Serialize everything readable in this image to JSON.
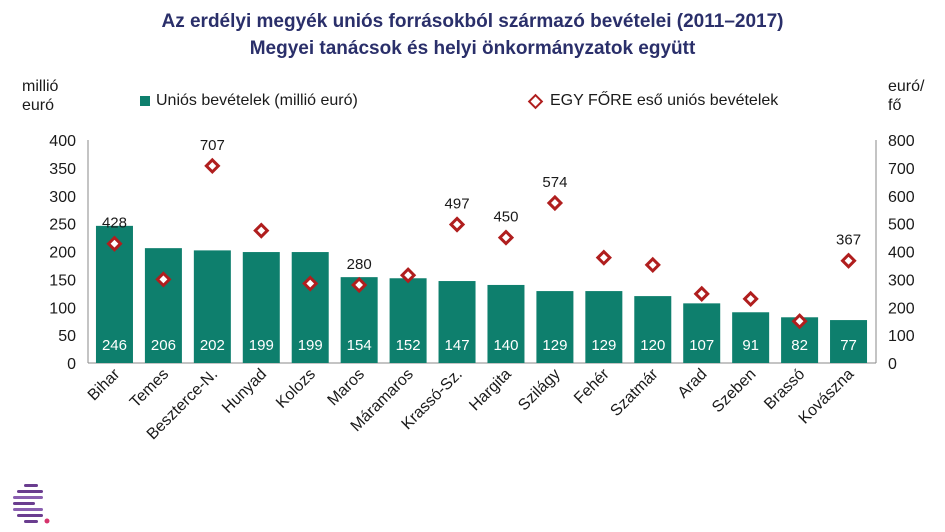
{
  "title": {
    "line1": "Az erdélyi megyék uniós forrásokból származó bevételei (2011–2017)",
    "line2": "Megyei tanácsok és helyi önkormányzatok együtt"
  },
  "axis_units": {
    "left_line1": "millió",
    "left_line2": "euró",
    "right_line1": "euró/",
    "right_line2": "fő"
  },
  "legend": {
    "bar_label": "Uniós bevételek (millió euró)",
    "marker_label": "EGY FŐRE eső uniós bevételek"
  },
  "colors": {
    "bar": "#0e7f6d",
    "marker": "#b01e1e",
    "title": "#2a2f6a",
    "logo_purple": "#6a3d8f",
    "logo_pink": "#d6336c"
  },
  "chart_data": {
    "type": "bar",
    "categories": [
      "Bihar",
      "Temes",
      "Beszterce-N.",
      "Hunyad",
      "Kolozs",
      "Maros",
      "Máramaros",
      "Krassó-Sz.",
      "Hargita",
      "Szilágy",
      "Fehér",
      "Szatmár",
      "Arad",
      "Szeben",
      "Brassó",
      "Kovászna"
    ],
    "series": [
      {
        "name": "Uniós bevételek (millió euró)",
        "type": "bar",
        "axis": "left",
        "values": [
          246,
          206,
          202,
          199,
          199,
          154,
          152,
          147,
          140,
          129,
          129,
          120,
          107,
          91,
          82,
          77
        ],
        "labels": [
          "246",
          "206",
          "202",
          "199",
          "199",
          "154",
          "152",
          "147",
          "140",
          "129",
          "129",
          "120",
          "107",
          "91",
          "82",
          "77"
        ]
      },
      {
        "name": "EGY FŐRE eső uniós bevételek",
        "type": "scatter",
        "axis": "right",
        "values": [
          428,
          300,
          707,
          475,
          285,
          280,
          315,
          497,
          450,
          574,
          378,
          352,
          248,
          230,
          150,
          367
        ],
        "labels": [
          "428",
          "",
          "707",
          "",
          "",
          "280",
          "",
          "497",
          "450",
          "574",
          "",
          "",
          "",
          "",
          "",
          "367"
        ]
      }
    ],
    "ylim_left": [
      0,
      400
    ],
    "yticks_left": [
      "0",
      "50",
      "100",
      "150",
      "200",
      "250",
      "300",
      "350",
      "400"
    ],
    "ylim_right": [
      0,
      800
    ],
    "yticks_right": [
      "0",
      "100",
      "200",
      "300",
      "400",
      "500",
      "600",
      "700",
      "800"
    ],
    "legend_position": "top",
    "grid": false
  }
}
